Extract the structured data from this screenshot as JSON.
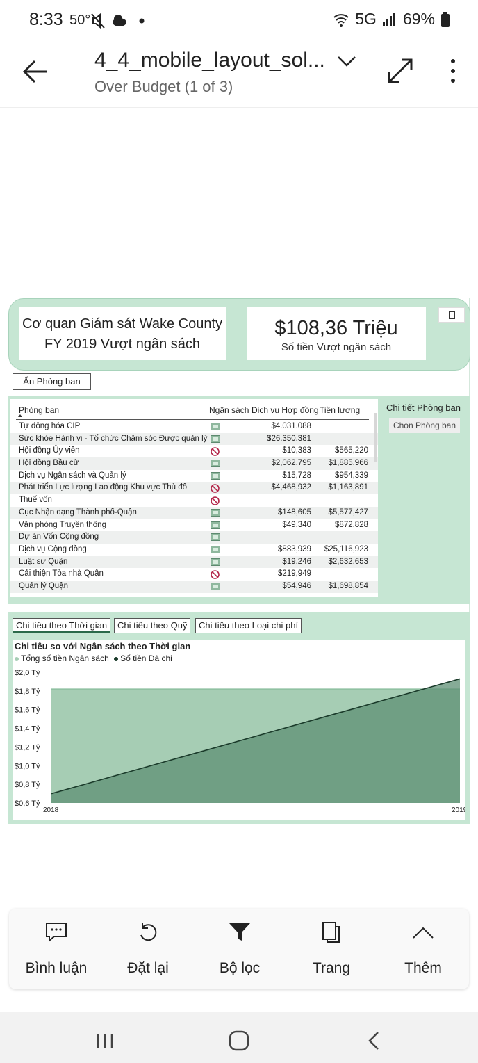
{
  "status": {
    "time": "8:33",
    "temp": "50°",
    "network": "5G",
    "battery": "69%"
  },
  "appbar": {
    "title": "4_4_mobile_layout_sol...",
    "subtitle": "Over Budget (1 of 3)"
  },
  "header": {
    "org_line1": "Cơ quan Giám sát Wake County",
    "org_line2": "FY 2019 Vượt ngân sách",
    "kpi_value": "$108,36 Triệu",
    "kpi_label": "Số tiền Vượt ngân sách",
    "toggle_label": "Ẩn Phòng ban"
  },
  "table": {
    "columns": [
      "Phòng ban",
      "Ngân sách",
      "Dịch vụ Hợp đồng",
      "Tiền lương"
    ],
    "rows": [
      {
        "name": "Tự động hóa CIP",
        "budget": "ok",
        "contract": "$4.031.088",
        "salary": ""
      },
      {
        "name": "Sức khỏe Hành vi - Tổ chức Chăm sóc Được quản lý",
        "budget": "ok",
        "contract": "$26.350.381",
        "salary": ""
      },
      {
        "name": "Hội đồng Ủy viên",
        "budget": "no",
        "contract": "$10,383",
        "salary": "$565,220"
      },
      {
        "name": "Hội đồng Bầu cử",
        "budget": "ok",
        "contract": "$2,062,795",
        "salary": "$1,885,966"
      },
      {
        "name": "Dịch vụ Ngân sách và Quản lý",
        "budget": "ok",
        "contract": "$15,728",
        "salary": "$954,339"
      },
      {
        "name": "Phát triển Lực lượng Lao động Khu vực Thủ đô",
        "budget": "no",
        "contract": "$4,468,932",
        "salary": "$1,163,891"
      },
      {
        "name": "Thuế vốn",
        "budget": "no",
        "contract": "",
        "salary": ""
      },
      {
        "name": "Cục Nhận dạng Thành phố-Quận",
        "budget": "ok",
        "contract": "$148,605",
        "salary": "$5,577,427"
      },
      {
        "name": "Văn phòng Truyền thông",
        "budget": "ok",
        "contract": "$49,340",
        "salary": "$872,828"
      },
      {
        "name": "Dự án Vốn Cộng đồng",
        "budget": "ok",
        "contract": "",
        "salary": ""
      },
      {
        "name": "Dịch vụ Cộng đồng",
        "budget": "ok",
        "contract": "$883,939",
        "salary": "$25,116,923"
      },
      {
        "name": "Luật sư Quận",
        "budget": "ok",
        "contract": "$19,246",
        "salary": "$2,632,653"
      },
      {
        "name": "Cải thiện Tòa nhà Quận",
        "budget": "no",
        "contract": "$219,949",
        "salary": ""
      },
      {
        "name": "Quản lý Quận",
        "budget": "ok",
        "contract": "$54,946",
        "salary": "$1,698,854"
      }
    ]
  },
  "detail": {
    "title": "Chi tiết Phòng ban",
    "button": "Chọn Phòng ban"
  },
  "tabs": [
    "Chi tiêu theo Thời gian",
    "Chi tiêu theo Quỹ",
    "Chi tiêu theo Loại chi phí"
  ],
  "chart_data": {
    "type": "area",
    "title": "Chi tiêu so với Ngân sách theo Thời gian",
    "x": [
      "2018",
      "2019"
    ],
    "series": [
      {
        "name": "Tổng số tiền Ngân sách",
        "values": [
          1.82,
          1.82
        ],
        "color": "#7aa88b"
      },
      {
        "name": "Số tiền Đã chi",
        "values": [
          0.7,
          1.93
        ],
        "color": "#1a3a2a"
      }
    ],
    "y_ticks": [
      "$2,0 Tỷ",
      "$1,8 Tỷ",
      "$1,6 Tỷ",
      "$1,4 Tỷ",
      "$1,2 Tỷ",
      "$1,0 Tỷ",
      "$0,8 Tỷ",
      "$0,6 Tỷ"
    ],
    "ylim": [
      0.6,
      2.0
    ]
  },
  "bottombar": {
    "items": [
      {
        "label": "Bình luận",
        "icon": "comment-icon"
      },
      {
        "label": "Đặt lại",
        "icon": "reset-icon"
      },
      {
        "label": "Bộ lọc",
        "icon": "filter-icon"
      },
      {
        "label": "Trang",
        "icon": "pages-icon"
      },
      {
        "label": "Thêm",
        "icon": "chevron-up-icon"
      }
    ]
  }
}
